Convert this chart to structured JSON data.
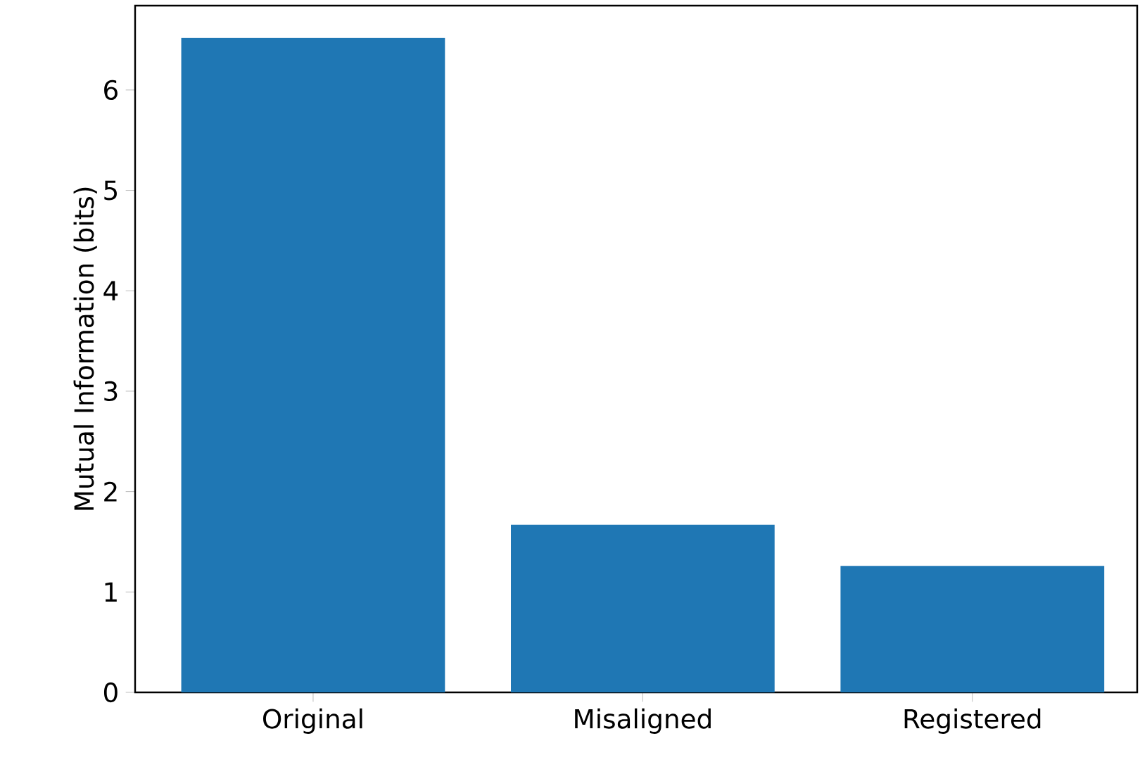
{
  "chart_data": {
    "type": "bar",
    "ylabel": "Mutual Information (bits)",
    "categories": [
      "Original",
      "Misaligned",
      "Registered"
    ],
    "values": [
      6.52,
      1.67,
      1.26
    ],
    "color": "#1f77b4",
    "ylim": [
      0,
      6.84
    ],
    "yticks": [
      0,
      1,
      2,
      3,
      4,
      5,
      6
    ],
    "grid": false
  }
}
